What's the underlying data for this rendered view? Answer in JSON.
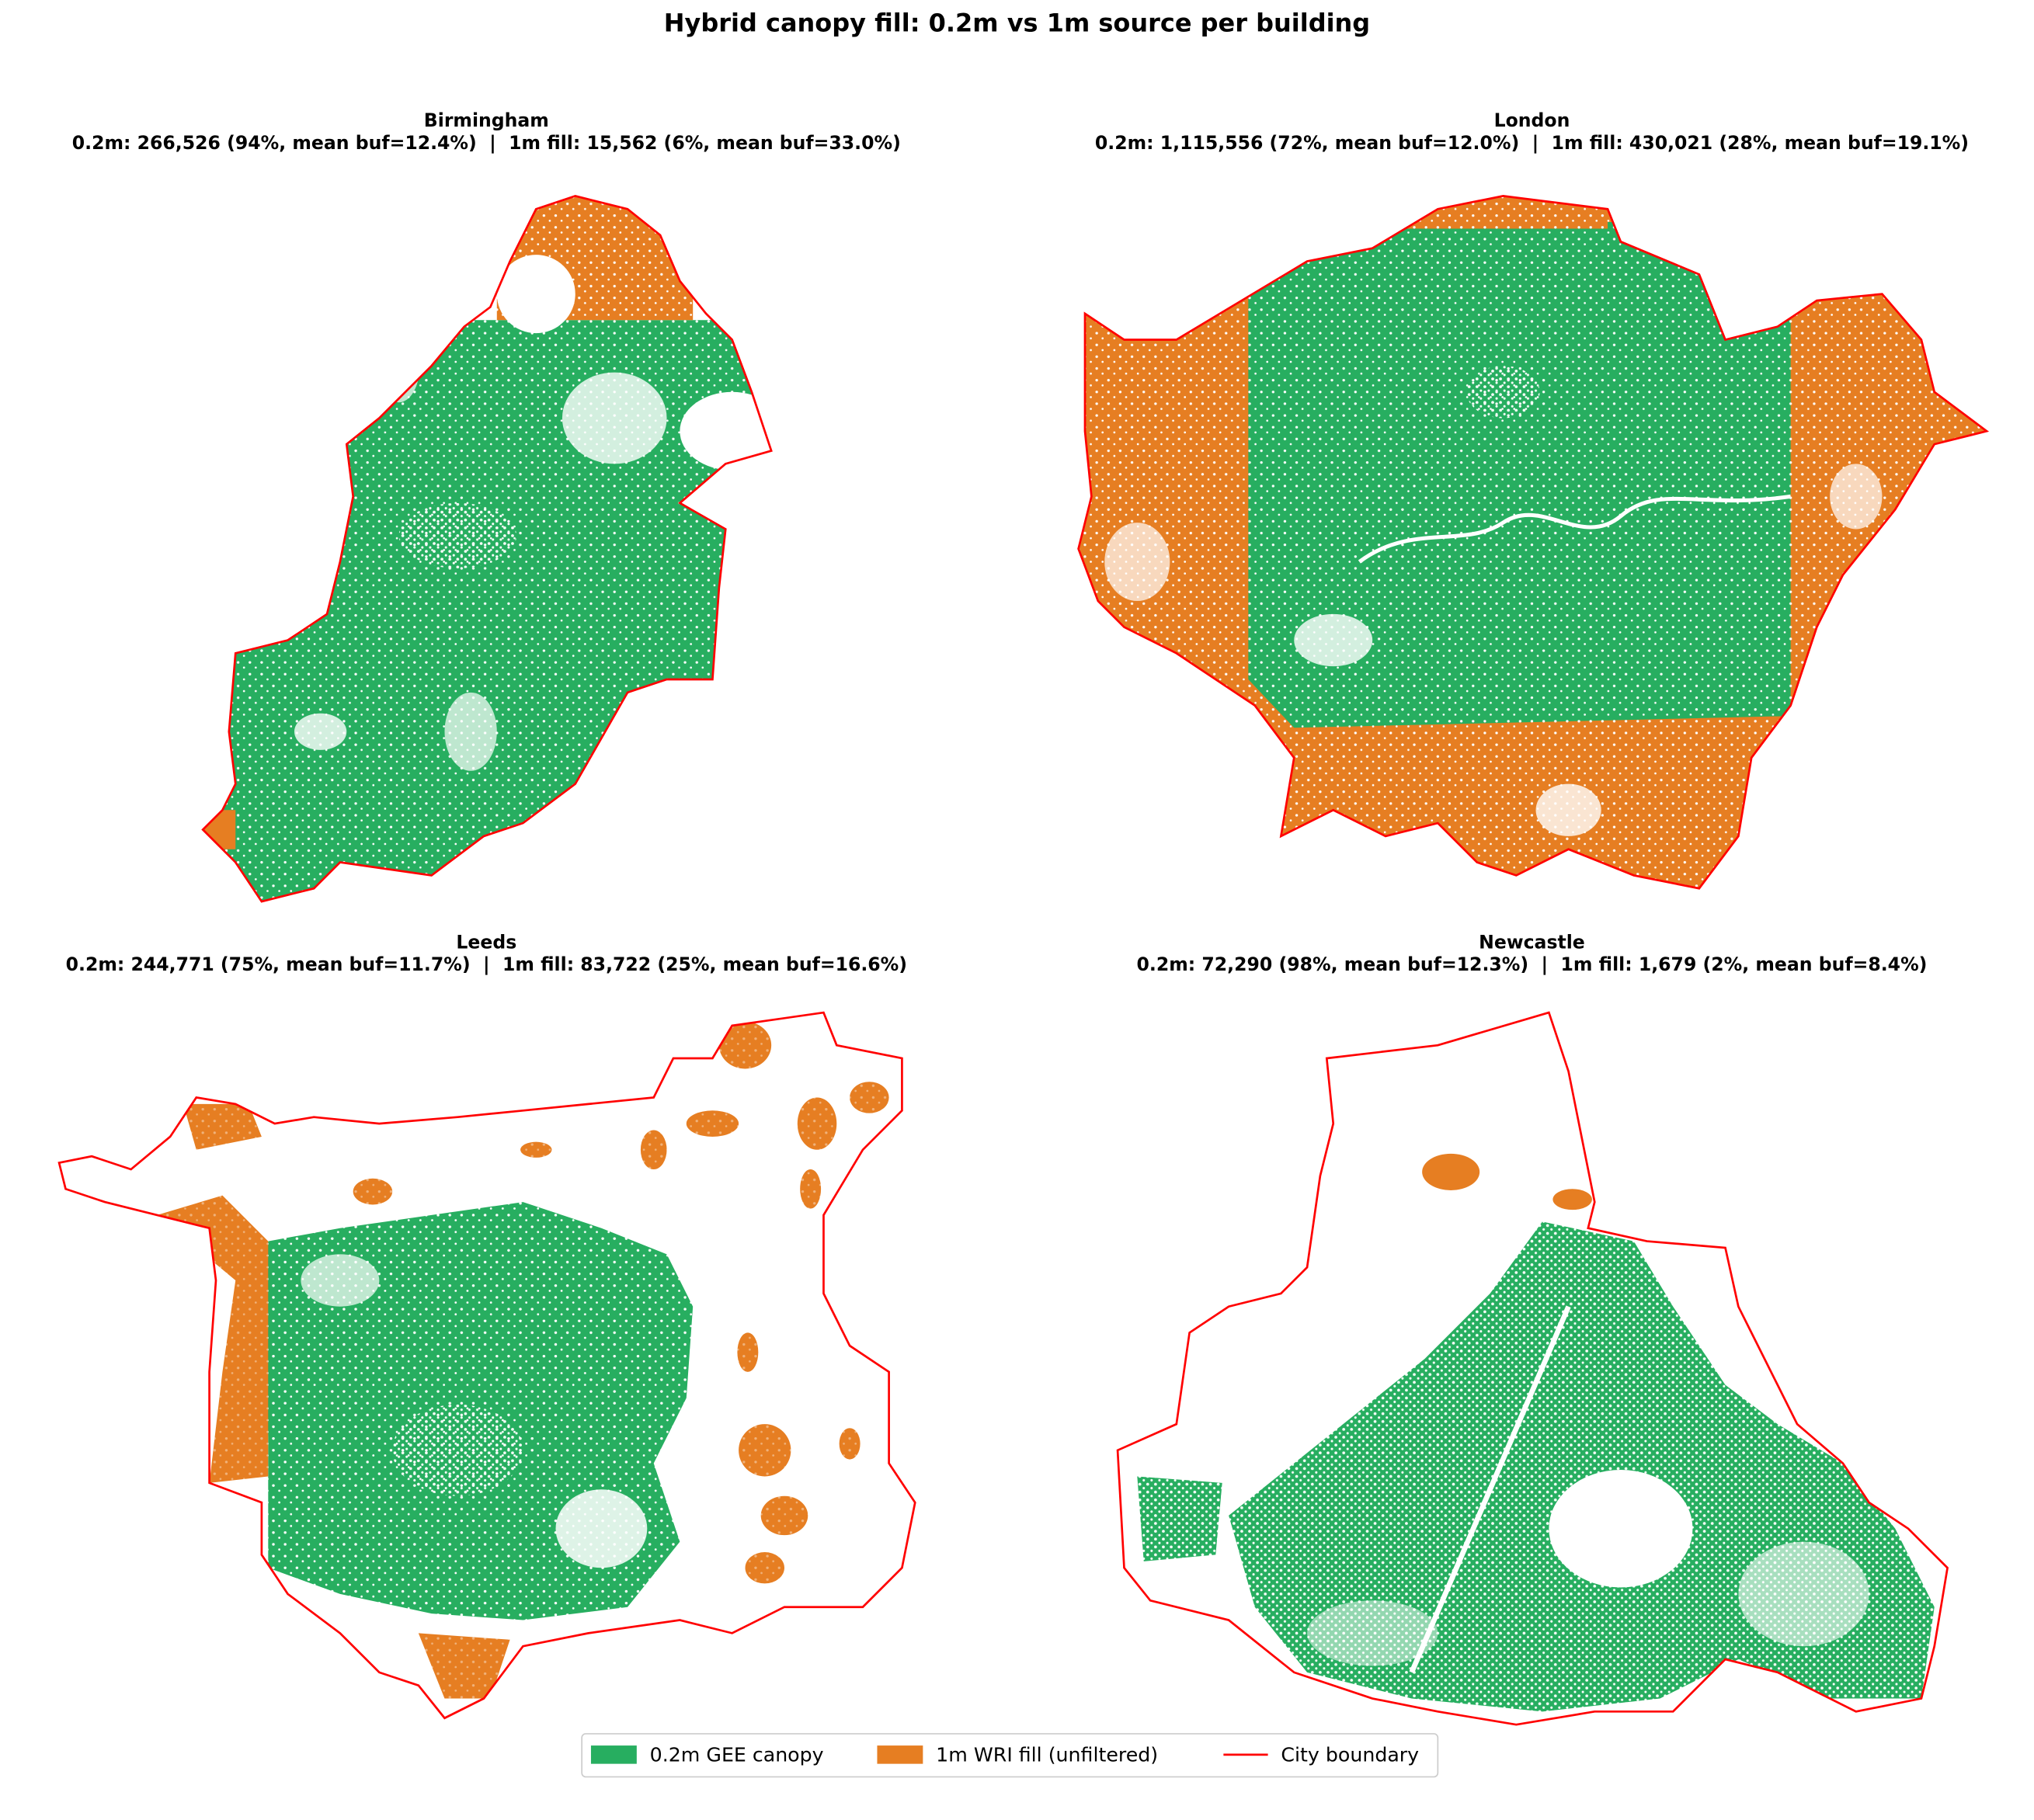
{
  "title": "Hybrid canopy fill: 0.2m vs 1m source per building",
  "panels": [
    {
      "city": "Birmingham",
      "stats": "0.2m: 266,526 (94%, mean buf=12.4%)  |  1m fill: 15,562 (6%, mean buf=33.0%)"
    },
    {
      "city": "London",
      "stats": "0.2m: 1,115,556 (72%, mean buf=12.0%)  |  1m fill: 430,021 (28%, mean buf=19.1%)"
    },
    {
      "city": "Leeds",
      "stats": "0.2m: 244,771 (75%, mean buf=11.7%)  |  1m fill: 83,722 (25%, mean buf=16.6%)"
    },
    {
      "city": "Newcastle",
      "stats": "0.2m: 72,290 (98%, mean buf=12.3%)  |  1m fill: 1,679 (2%, mean buf=8.4%)"
    }
  ],
  "legend": [
    {
      "label": "0.2m GEE canopy",
      "color": "#27ae60"
    },
    {
      "label": "1m WRI fill (unfiltered)",
      "color": "#e67e22"
    },
    {
      "label": "City boundary",
      "color": "#ff0000"
    }
  ]
}
